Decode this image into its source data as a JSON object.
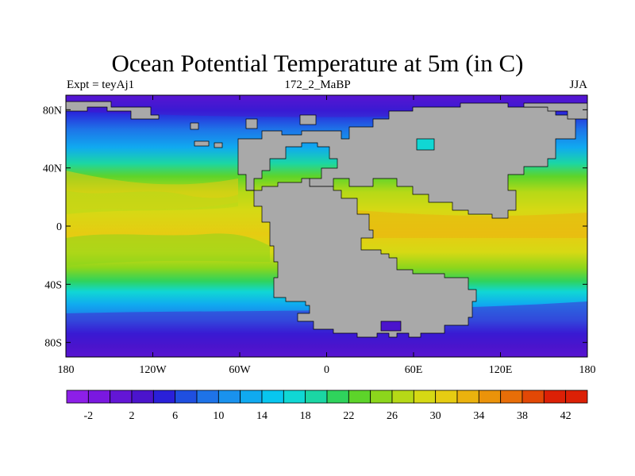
{
  "title": "Ocean Potential Temperature at 5m (in C)",
  "left_string": "Expt = teyAj1",
  "center_string": "172_2_MaBP",
  "right_string": "JJA",
  "colors": {
    "land": "#a9a9a9",
    "palette": [
      "#8d1fe8",
      "#7a18e0",
      "#6316d6",
      "#4b14cc",
      "#2a20d9",
      "#1f4fe0",
      "#1e73e8",
      "#1992ee",
      "#10aaf0",
      "#08c6ef",
      "#10d7d4",
      "#1bd6a4",
      "#2fd35c",
      "#5dd42a",
      "#8cd61c",
      "#b6d917",
      "#d6d914",
      "#e6cc12",
      "#ebb20e",
      "#eb930a",
      "#e86e08",
      "#e24806",
      "#dc2006"
    ]
  },
  "chart_data": {
    "type": "heatmap",
    "x_ticks": [
      "180",
      "120W",
      "60W",
      "0",
      "60E",
      "120E",
      "180"
    ],
    "y_ticks": [
      "80N",
      "40N",
      "0",
      "40S",
      "80S"
    ],
    "colorbar": {
      "labels": [
        "-2",
        "2",
        "6",
        "10",
        "14",
        "18",
        "22",
        "26",
        "30",
        "34",
        "38",
        "42"
      ],
      "levels": [
        -4,
        -2,
        0,
        2,
        4,
        6,
        8,
        10,
        12,
        14,
        16,
        18,
        20,
        22,
        24,
        26,
        28,
        30,
        32,
        34,
        36,
        38,
        40,
        42,
        44
      ]
    }
  }
}
